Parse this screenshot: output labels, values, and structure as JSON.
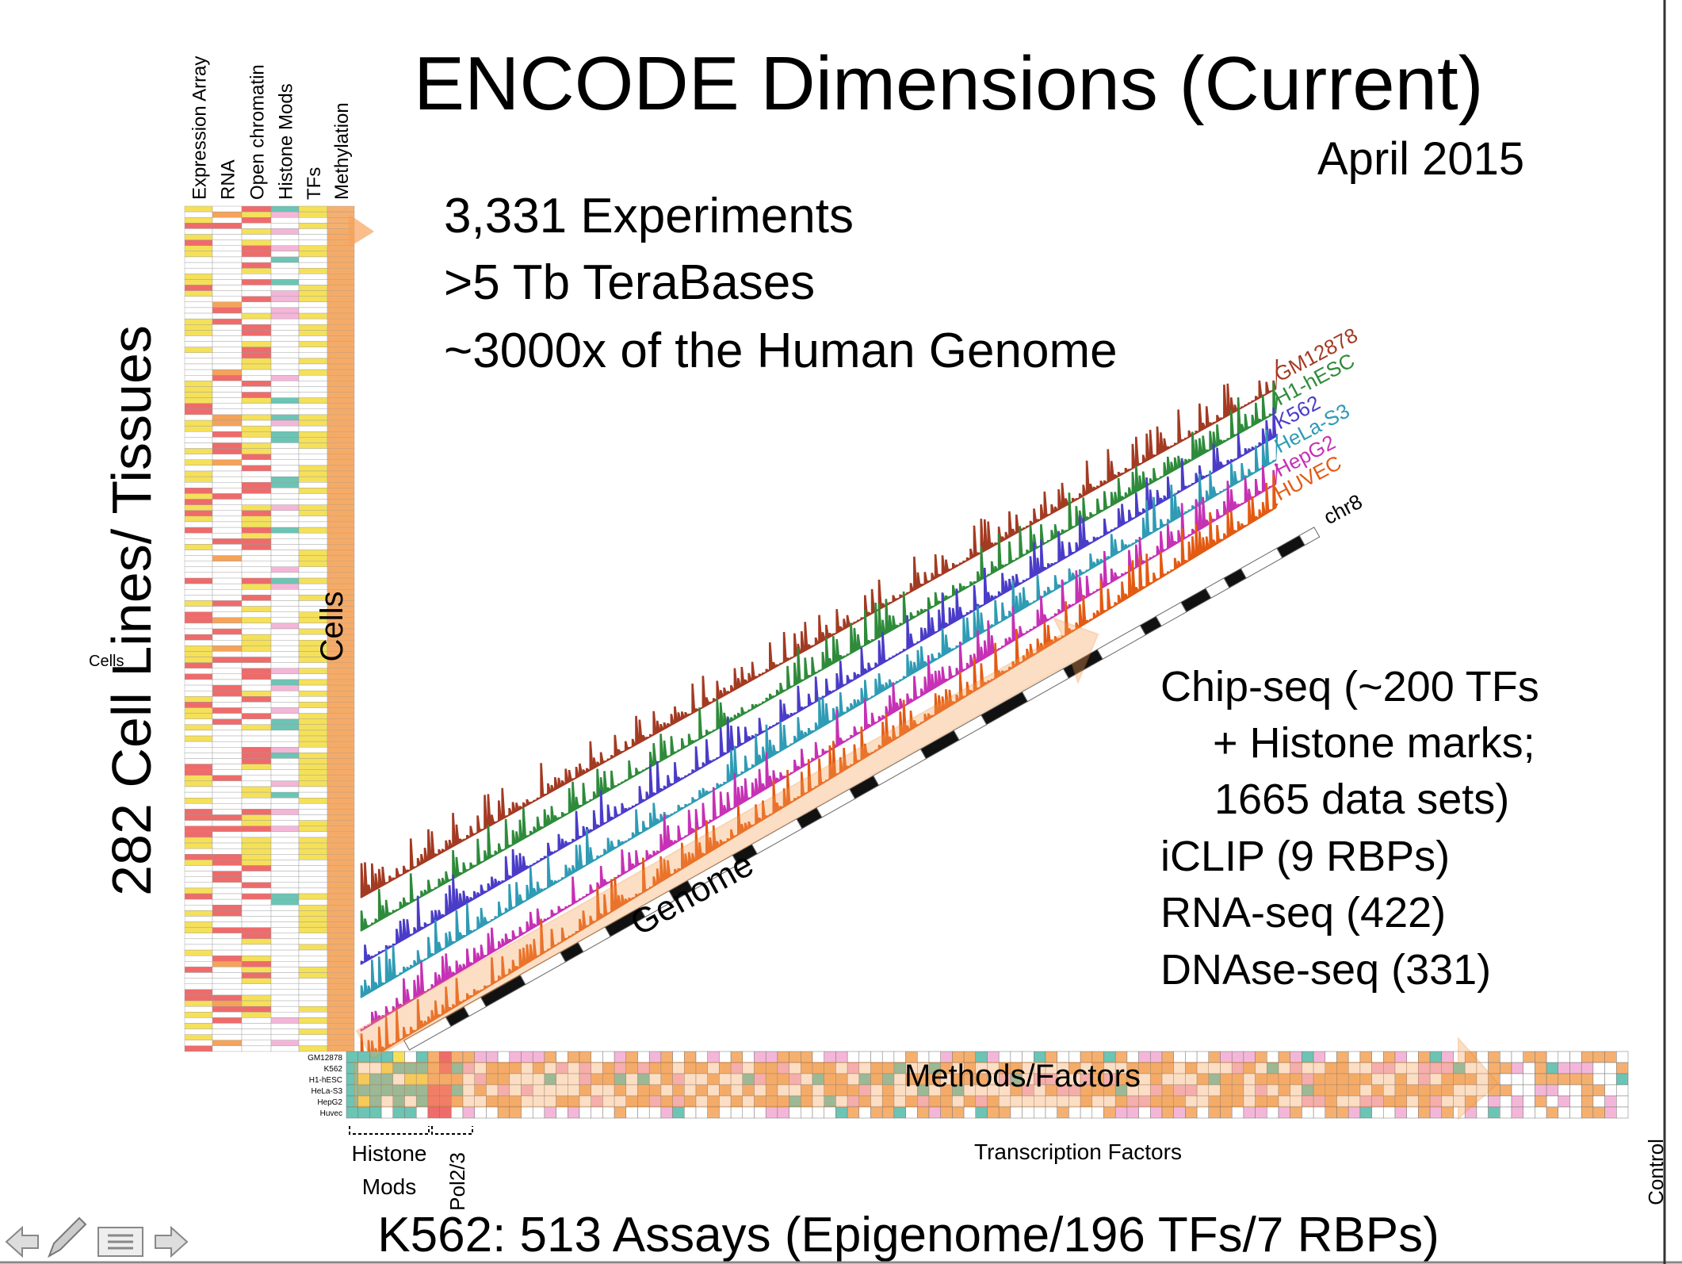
{
  "slide": {
    "title": "ENCODE Dimensions (Current)",
    "date": "April 2015",
    "stats": [
      "3,331 Experiments",
      ">5 Tb TeraBases",
      "~3000x of the Human Genome"
    ],
    "cell_matrix": {
      "assay_columns": [
        "Expression Array",
        "RNA",
        "Open chromatin",
        "Histone Mods",
        "TFs",
        "Methylation"
      ],
      "axis_label": "282 Cell Lines/ Tissues",
      "small_label": "Cells",
      "arrow_label": "Cells"
    },
    "genome_tracks": {
      "tracks": [
        {
          "name": "GM12878",
          "color": "#a33a22"
        },
        {
          "name": "H1-hESC",
          "color": "#2e8b3a"
        },
        {
          "name": "K562",
          "color": "#4a3cc8"
        },
        {
          "name": "HeLa-S3",
          "color": "#2f9bb5"
        },
        {
          "name": "HepG2",
          "color": "#c631b5"
        },
        {
          "name": "HUVEC",
          "color": "#e35a12"
        }
      ],
      "chromosome": "chr8",
      "arrow_label": "Genome"
    },
    "assay_summary": [
      "Chip-seq (~200 TFs",
      "+ Histone marks;",
      "1665 data sets)",
      "iCLIP (9 RBPs)",
      "RNA-seq (422)",
      "DNAse-seq (331)"
    ],
    "factor_matrix": {
      "rows": [
        "GM12878",
        "K562",
        "H1-hESC",
        "HeLa-S3",
        "HepG2",
        "Huvec"
      ],
      "arrow_label": "Methods/Factors",
      "histone_group": [
        "Histone",
        "Mods"
      ],
      "pol_group": "Pol2/3",
      "tf_group": "Transcription Factors",
      "control_group": "Control"
    },
    "footer": "K562: 513 Assays (Epigenome/196 TFs/7 RBPs)"
  }
}
